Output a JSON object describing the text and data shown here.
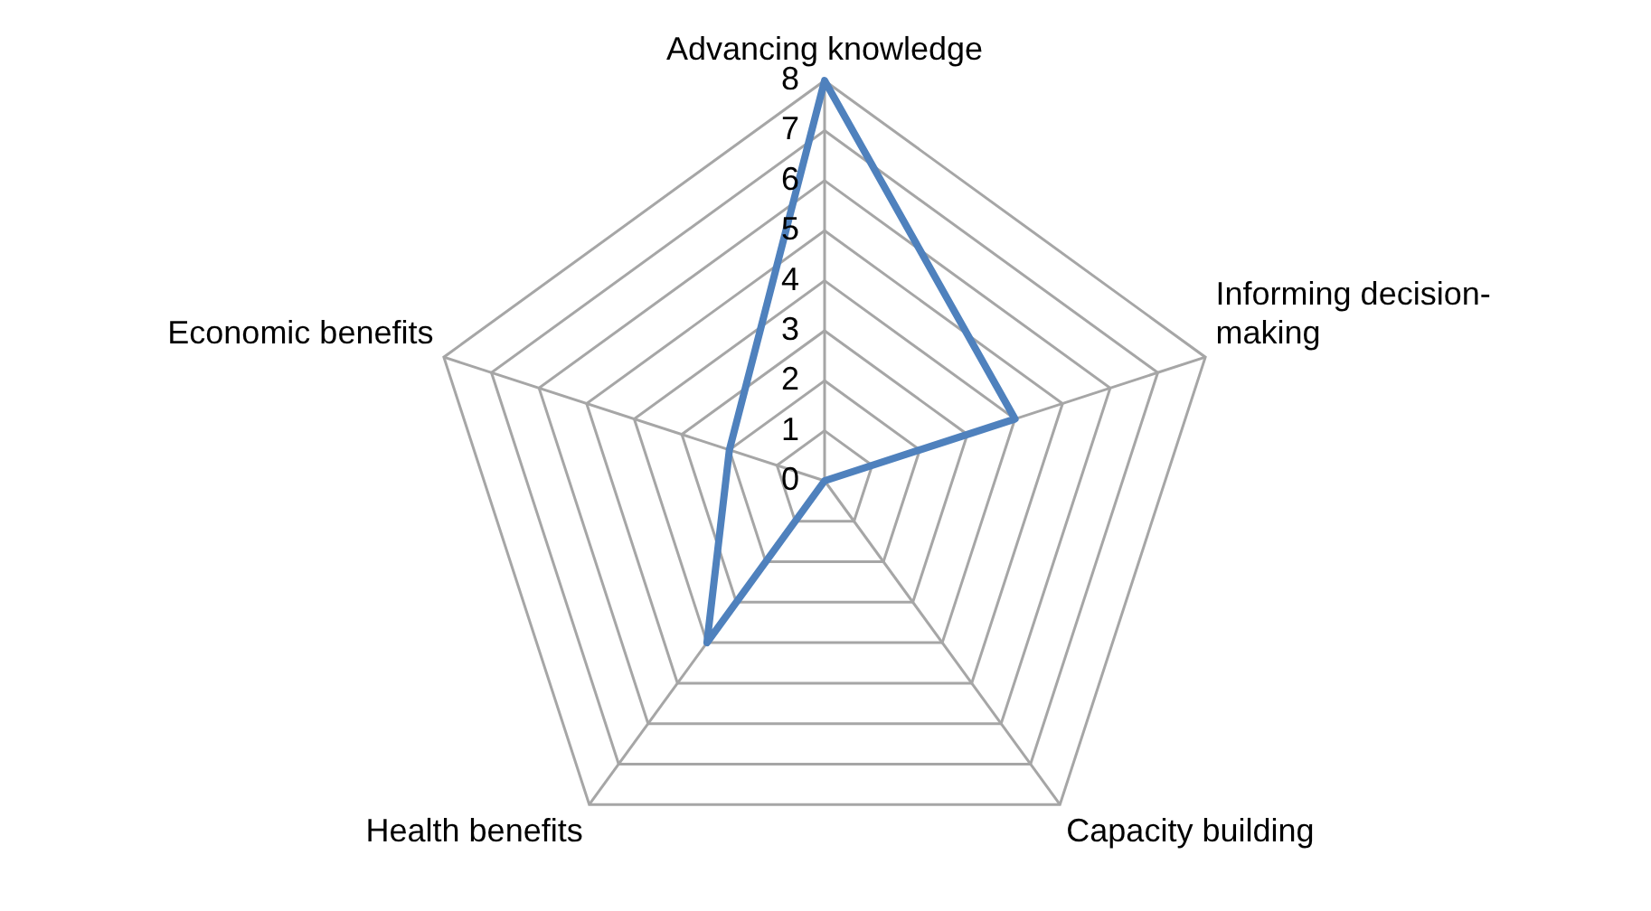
{
  "chart_data": {
    "type": "radar",
    "categories": [
      "Advancing knowledge",
      "Informing decision-making",
      "Capacity building",
      "Health benefits",
      "Economic benefits"
    ],
    "series": [
      {
        "color": "#4f81bd",
        "values": [
          8,
          4,
          0,
          4,
          2
        ]
      }
    ],
    "ylim": [
      0,
      8
    ],
    "yticks": [
      0,
      1,
      2,
      3,
      4,
      5,
      6,
      7,
      8
    ],
    "grid": true,
    "legend": false,
    "marker": "none",
    "line_style": "solid"
  }
}
